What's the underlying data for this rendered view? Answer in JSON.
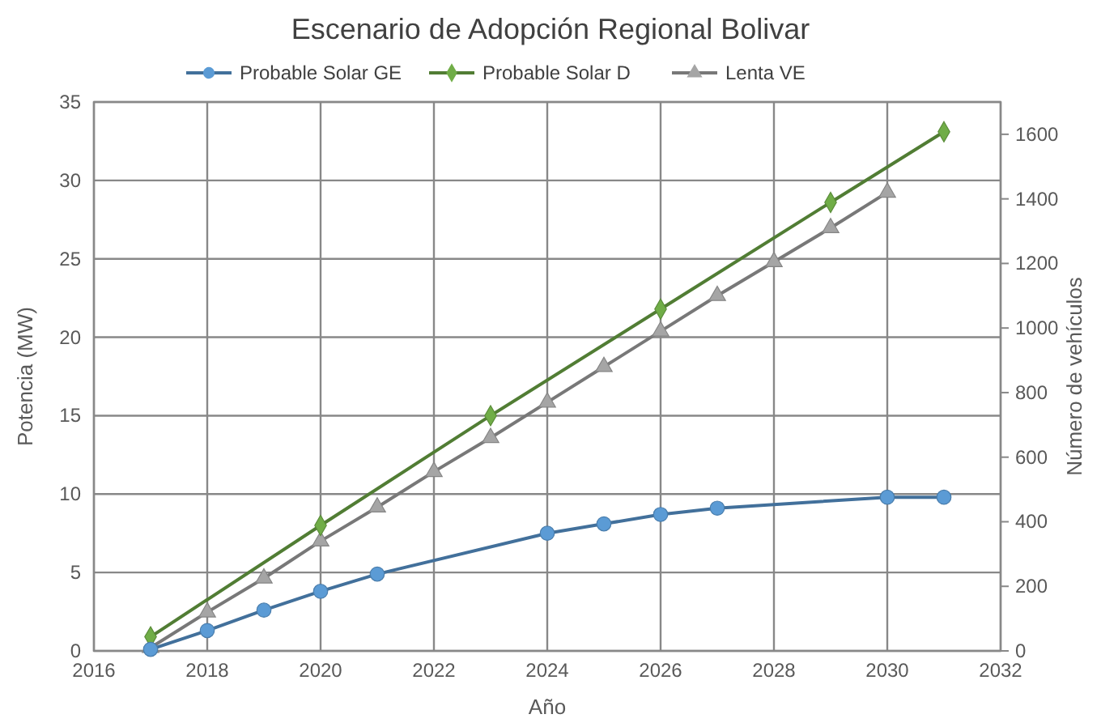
{
  "chart_data": {
    "type": "line",
    "title": "Escenario de Adopción Regional Bolivar",
    "xlabel": "Año",
    "ylabel": "Potencia (MW)",
    "y2label": "Número de vehículos",
    "xlim": [
      2016,
      2032
    ],
    "xticks": [
      2016,
      2018,
      2020,
      2022,
      2024,
      2026,
      2028,
      2030,
      2032
    ],
    "ylim": [
      0,
      35
    ],
    "yticks": [
      0,
      5,
      10,
      15,
      20,
      25,
      30,
      35
    ],
    "y2lim": [
      0,
      1700
    ],
    "y2ticks": [
      0,
      200,
      400,
      600,
      800,
      1000,
      1200,
      1400,
      1600
    ],
    "grid": true,
    "legend": "top",
    "line_style": "solid",
    "series": [
      {
        "name": "Probable Solar GE",
        "color": "#5b9bd5",
        "marker": "circle",
        "x": [
          2017,
          2018,
          2019,
          2020,
          2021,
          2024,
          2025,
          2026,
          2027,
          2030,
          2031
        ],
        "values": [
          0.1,
          1.3,
          2.6,
          3.8,
          4.9,
          7.5,
          8.1,
          8.7,
          9.1,
          9.8,
          9.8
        ]
      },
      {
        "name": "Probable Solar D",
        "color": "#70ad47",
        "marker": "diamond",
        "x": [
          2017,
          2020,
          2023,
          2026,
          2029,
          2031
        ],
        "values": [
          0.9,
          8,
          15,
          21.8,
          28.6,
          33.1
        ]
      },
      {
        "name": "Lenta VE",
        "color": "#a5a5a5",
        "marker": "triangle",
        "axis": "y2",
        "x": [
          2017,
          2018,
          2019,
          2020,
          2021,
          2022,
          2023,
          2024,
          2025,
          2026,
          2027,
          2028,
          2029,
          2030
        ],
        "values": [
          10,
          120,
          225,
          340,
          445,
          555,
          660,
          770,
          880,
          990,
          1100,
          1205,
          1310,
          1420
        ]
      }
    ]
  }
}
